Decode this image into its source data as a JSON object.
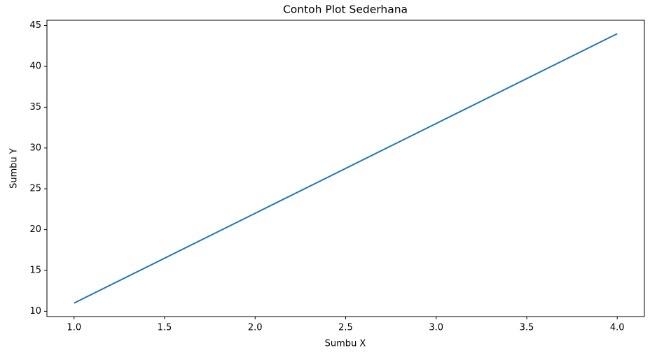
{
  "chart_data": {
    "type": "line",
    "title": "Contoh Plot Sederhana",
    "x_label": "Sumbu X",
    "y_label": "Sumbu Y",
    "x": [
      1,
      2,
      3,
      4
    ],
    "values": [
      11,
      22,
      33,
      44
    ],
    "color": "#1f77b4",
    "xlim": [
      0.85,
      4.15
    ],
    "xticks": [
      {
        "value": 1,
        "label": "1.0"
      },
      {
        "value": 1.5,
        "label": "1.5"
      },
      {
        "value": 2,
        "label": "2.0"
      },
      {
        "value": 2.5,
        "label": "2.5"
      },
      {
        "value": 3,
        "label": "3.0"
      },
      {
        "value": 3.5,
        "label": "3.5"
      },
      {
        "value": 4,
        "label": "4.0"
      }
    ],
    "ylim": [
      9.35,
      45.65
    ],
    "yticks": [
      10,
      15,
      20,
      25,
      30,
      35,
      40,
      45
    ],
    "grid": false
  }
}
